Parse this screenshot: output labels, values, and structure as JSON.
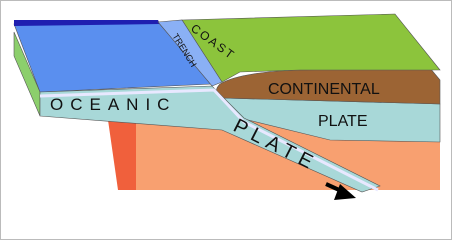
{
  "labels": [
    "COAST",
    "TRENCH",
    "CONTINENTAL",
    "PLATE",
    "OCEANIC",
    "PLATE"
  ]
}
